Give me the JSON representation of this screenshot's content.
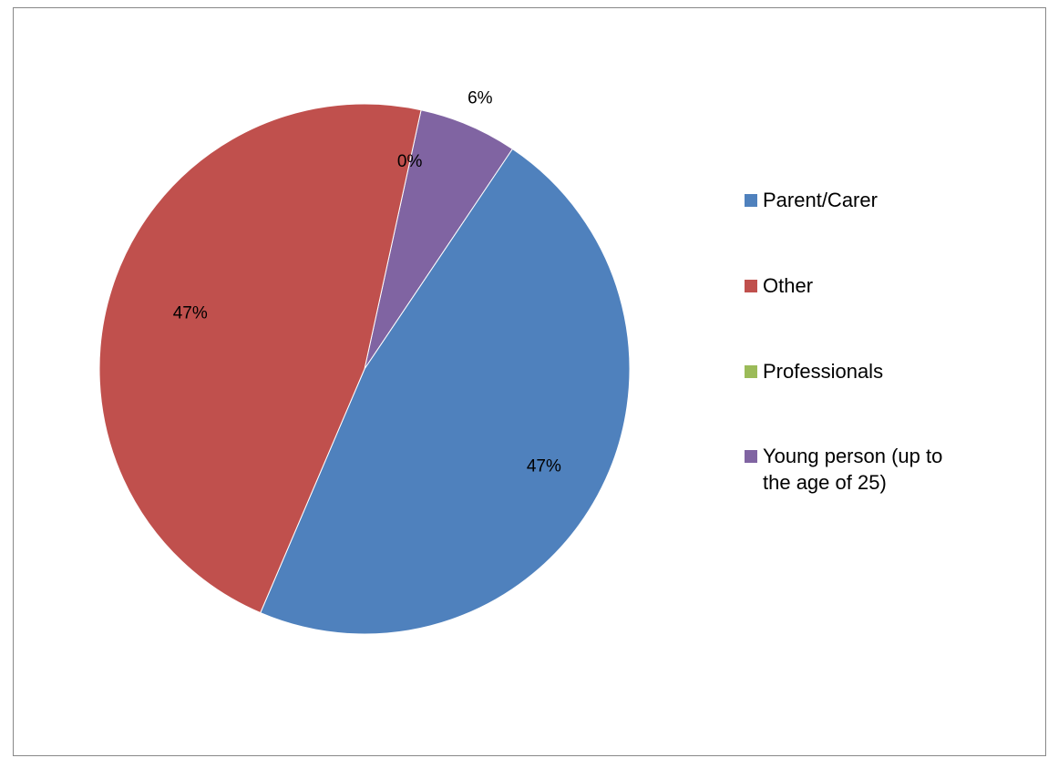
{
  "chart_data": {
    "type": "pie",
    "title": "",
    "categories": [
      "Parent/Carer",
      "Other",
      "Professionals",
      "Young person (up to the age of 25)"
    ],
    "values": [
      47,
      47,
      0,
      6
    ],
    "data_labels": [
      "47%",
      "47%",
      "0%",
      "6%"
    ],
    "colors": [
      "#4F81BD",
      "#C0504D",
      "#9BBB59",
      "#8064A2"
    ],
    "legend_position": "right"
  }
}
